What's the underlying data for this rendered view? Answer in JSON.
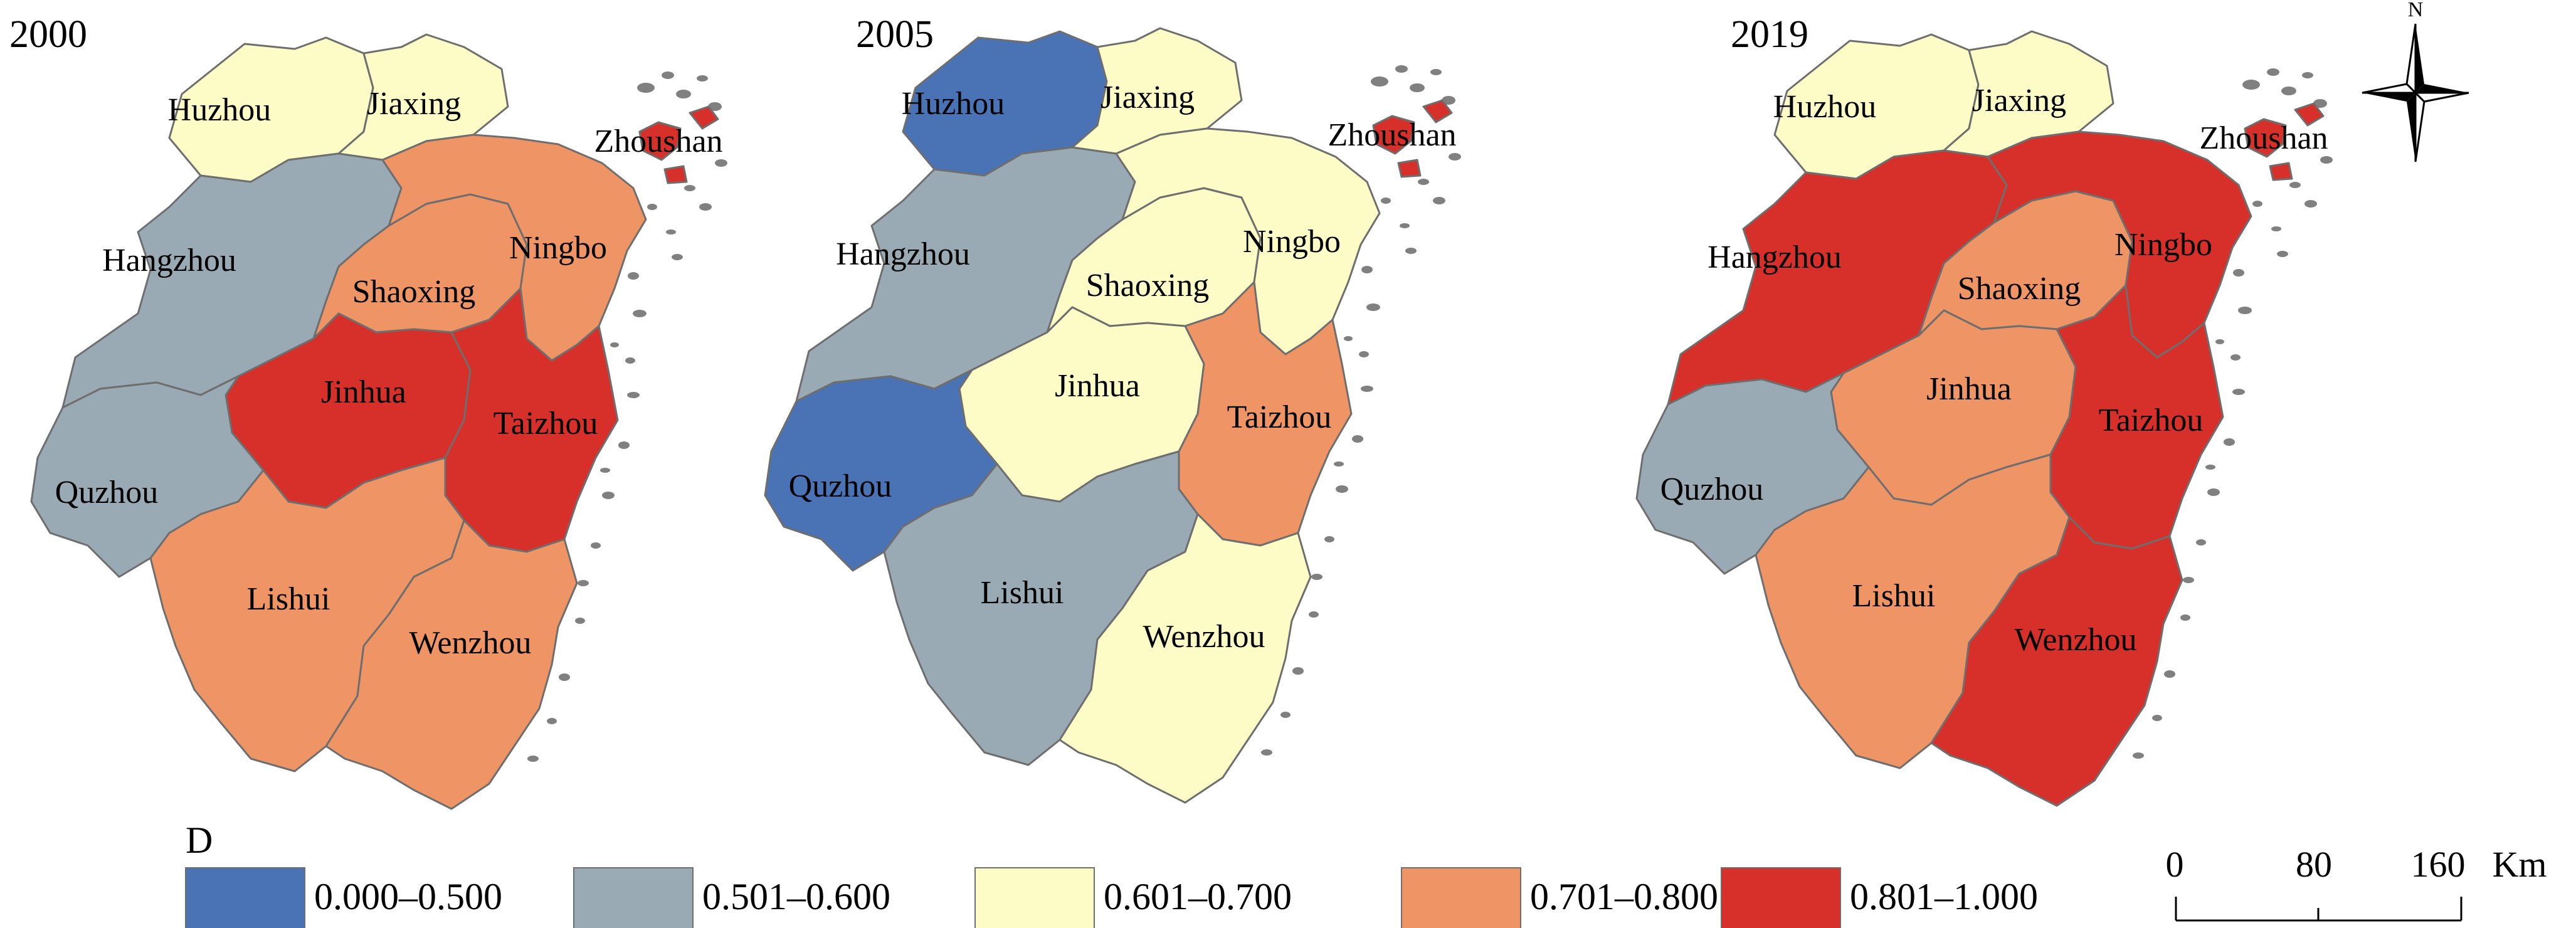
{
  "legend": {
    "title": "D",
    "classes": [
      {
        "label": "0.000–0.500",
        "color": "#4a73b5"
      },
      {
        "label": "0.501–0.600",
        "color": "#9aaab4"
      },
      {
        "label": "0.601–0.700",
        "color": "#fdfbc6"
      },
      {
        "label": "0.701–0.800",
        "color": "#ef9465"
      },
      {
        "label": "0.801–1.000",
        "color": "#d7302b"
      }
    ]
  },
  "scale_bar": {
    "ticks": [
      "0",
      "80",
      "160"
    ],
    "unit": "Km"
  },
  "north_arrow": {
    "label": "N"
  },
  "maps": [
    {
      "year": "2000",
      "regions": {
        "Huzhou": 2,
        "Jiaxing": 2,
        "Hangzhou": 1,
        "Shaoxing": 3,
        "Ningbo": 3,
        "Zhoushan": 4,
        "Jinhua": 4,
        "Taizhou": 4,
        "Quzhou": 1,
        "Lishui": 3,
        "Wenzhou": 3
      }
    },
    {
      "year": "2005",
      "regions": {
        "Huzhou": 0,
        "Jiaxing": 2,
        "Hangzhou": 1,
        "Shaoxing": 2,
        "Ningbo": 2,
        "Zhoushan": 4,
        "Jinhua": 2,
        "Taizhou": 3,
        "Quzhou": 0,
        "Lishui": 1,
        "Wenzhou": 2
      }
    },
    {
      "year": "2019",
      "regions": {
        "Huzhou": 2,
        "Jiaxing": 2,
        "Hangzhou": 4,
        "Shaoxing": 3,
        "Ningbo": 4,
        "Zhoushan": 4,
        "Jinhua": 3,
        "Taizhou": 4,
        "Quzhou": 1,
        "Lishui": 3,
        "Wenzhou": 4
      }
    }
  ]
}
